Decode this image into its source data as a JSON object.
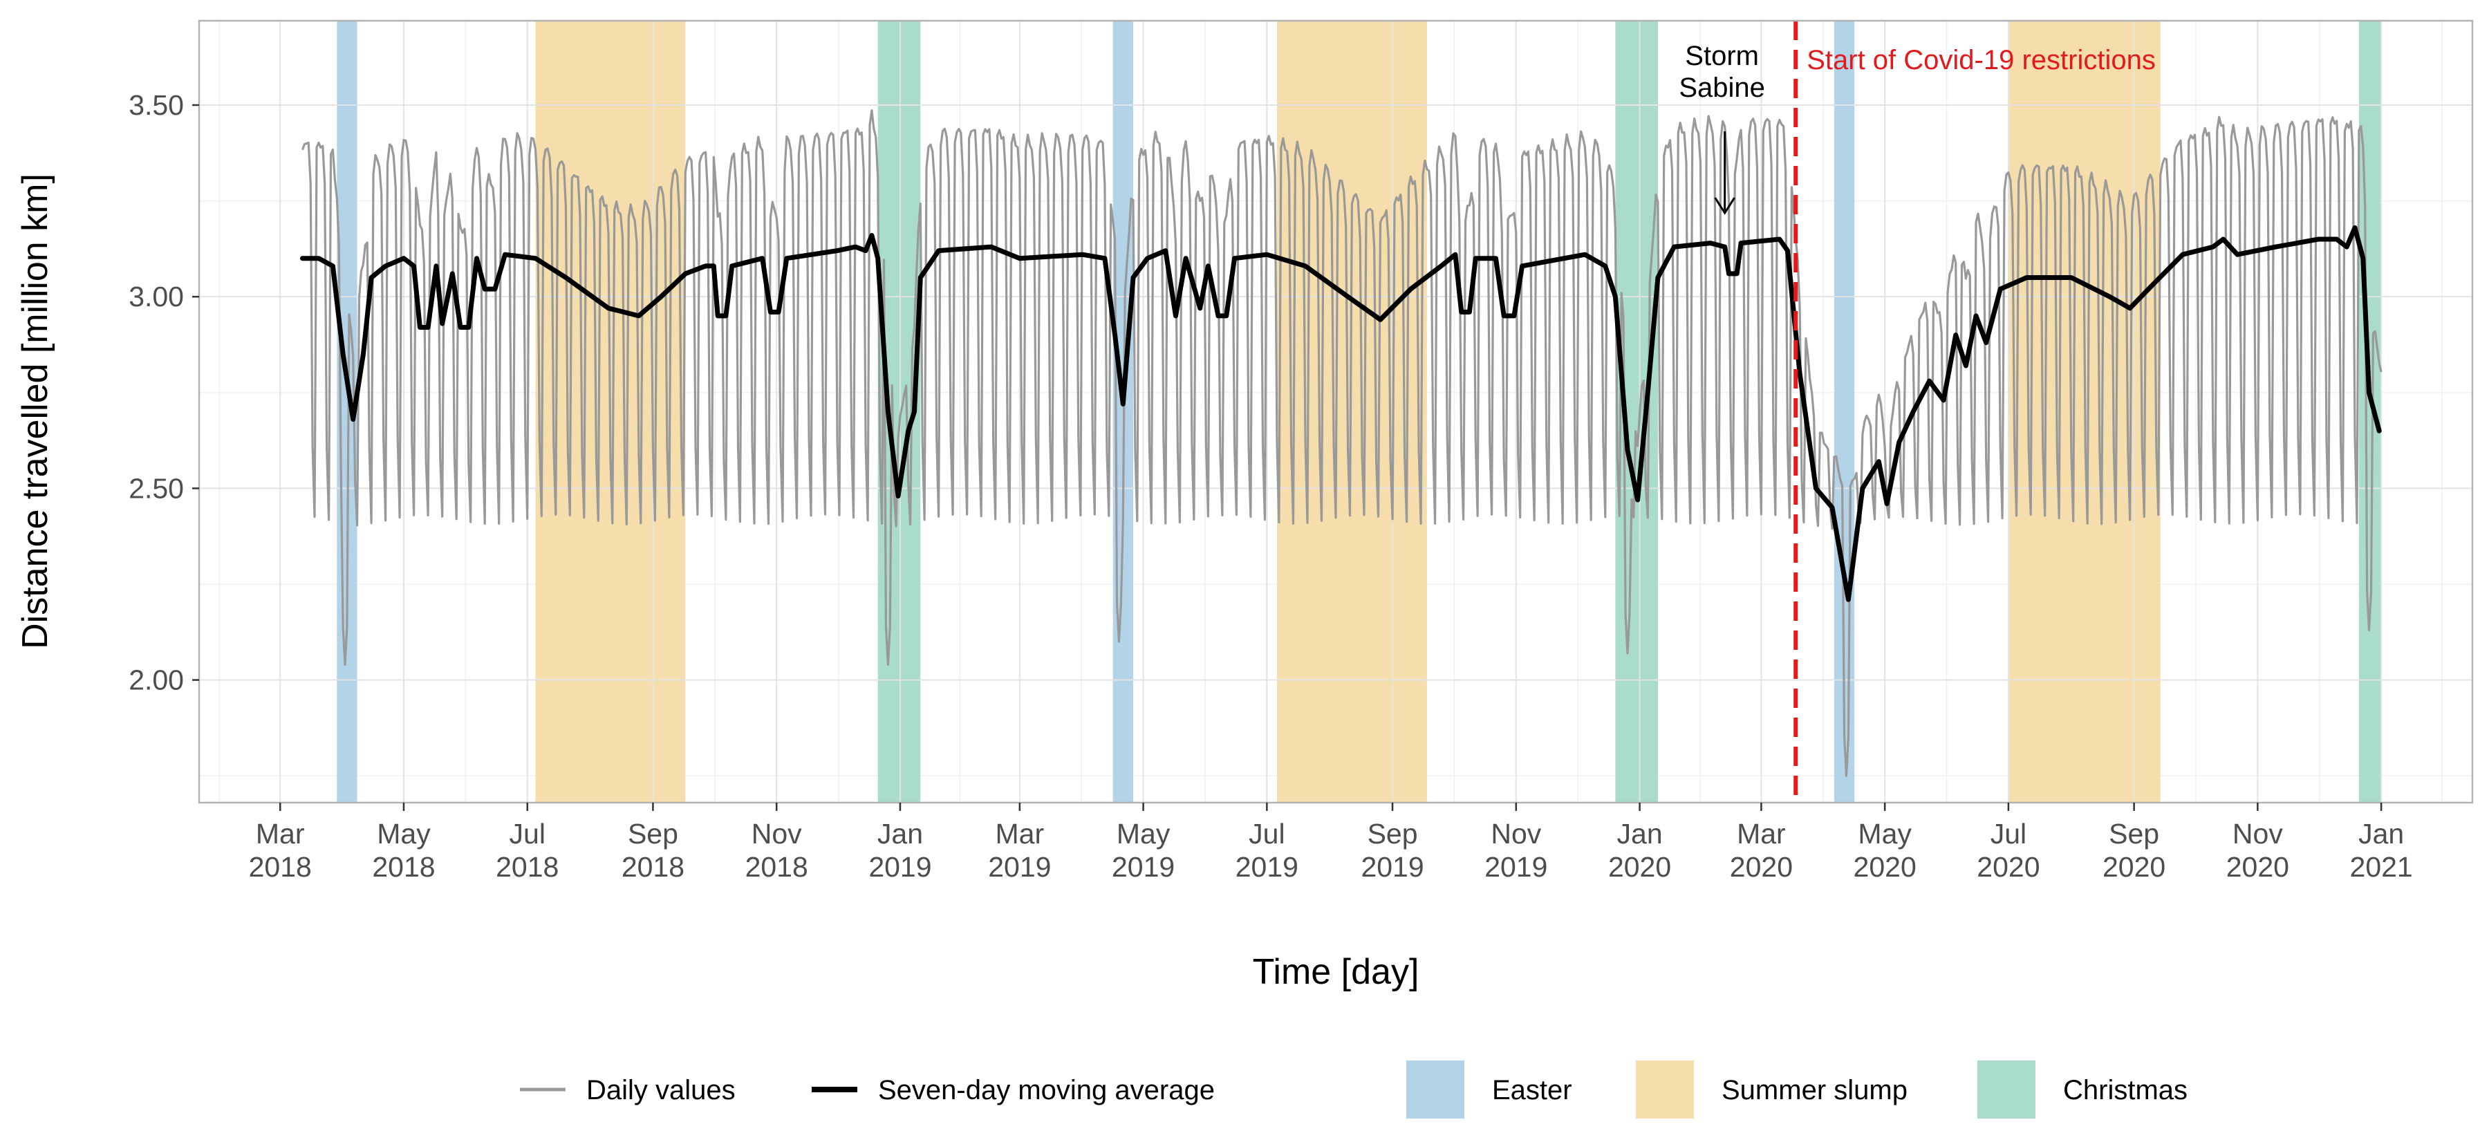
{
  "chart_data": {
    "type": "line",
    "xlabel": "Time [day]",
    "ylabel": "Distance travelled [million km]",
    "ylim": [
      1.68,
      3.72
    ],
    "x_range": [
      "2018-01-20",
      "2021-02-15"
    ],
    "y_ticks": [
      {
        "value": 2.0,
        "label": "2.00"
      },
      {
        "value": 2.5,
        "label": "2.50"
      },
      {
        "value": 3.0,
        "label": "3.00"
      },
      {
        "value": 3.5,
        "label": "3.50"
      }
    ],
    "x_ticks": [
      {
        "date": "2018-03-01",
        "month": "Mar",
        "year": "2018"
      },
      {
        "date": "2018-05-01",
        "month": "May",
        "year": "2018"
      },
      {
        "date": "2018-07-01",
        "month": "Jul",
        "year": "2018"
      },
      {
        "date": "2018-09-01",
        "month": "Sep",
        "year": "2018"
      },
      {
        "date": "2018-11-01",
        "month": "Nov",
        "year": "2018"
      },
      {
        "date": "2019-01-01",
        "month": "Jan",
        "year": "2019"
      },
      {
        "date": "2019-03-01",
        "month": "Mar",
        "year": "2019"
      },
      {
        "date": "2019-05-01",
        "month": "May",
        "year": "2019"
      },
      {
        "date": "2019-07-01",
        "month": "Jul",
        "year": "2019"
      },
      {
        "date": "2019-09-01",
        "month": "Sep",
        "year": "2019"
      },
      {
        "date": "2019-11-01",
        "month": "Nov",
        "year": "2019"
      },
      {
        "date": "2020-01-01",
        "month": "Jan",
        "year": "2020"
      },
      {
        "date": "2020-03-01",
        "month": "Mar",
        "year": "2020"
      },
      {
        "date": "2020-05-01",
        "month": "May",
        "year": "2020"
      },
      {
        "date": "2020-07-01",
        "month": "Jul",
        "year": "2020"
      },
      {
        "date": "2020-09-01",
        "month": "Sep",
        "year": "2020"
      },
      {
        "date": "2020-11-01",
        "month": "Nov",
        "year": "2020"
      },
      {
        "date": "2021-01-01",
        "month": "Jan",
        "year": "2021"
      }
    ],
    "periods": [
      {
        "category": "easter",
        "start": "2018-03-29",
        "end": "2018-04-08"
      },
      {
        "category": "summer",
        "start": "2018-07-05",
        "end": "2018-09-17"
      },
      {
        "category": "christmas",
        "start": "2018-12-21",
        "end": "2019-01-11"
      },
      {
        "category": "easter",
        "start": "2019-04-16",
        "end": "2019-04-26"
      },
      {
        "category": "summer",
        "start": "2019-07-06",
        "end": "2019-09-18"
      },
      {
        "category": "christmas",
        "start": "2019-12-20",
        "end": "2020-01-10"
      },
      {
        "category": "easter",
        "start": "2020-04-06",
        "end": "2020-04-16"
      },
      {
        "category": "summer",
        "start": "2020-07-01",
        "end": "2020-09-14"
      },
      {
        "category": "christmas",
        "start": "2020-12-21",
        "end": "2021-01-01"
      }
    ],
    "period_colors": {
      "easter": "#b3d4e8",
      "summer": "#f5deab",
      "christmas": "#a9dcc9"
    },
    "series": [
      {
        "name": "Daily values",
        "color": "#999999",
        "start_date": "2018-03-12",
        "end_date": "2021-01-01",
        "generated": "weekly pattern: weekday peaks ~3.40, weekend troughs ~2.42, dips at holidays",
        "holiday_dips": [
          {
            "date": "2018-04-02",
            "value": 2.04
          },
          {
            "date": "2018-12-26",
            "value": 2.04
          },
          {
            "date": "2019-04-19",
            "value": 2.1
          },
          {
            "date": "2019-12-26",
            "value": 2.07
          },
          {
            "date": "2020-04-12",
            "value": 1.75
          },
          {
            "date": "2020-12-26",
            "value": 2.13
          }
        ]
      },
      {
        "name": "Seven-day moving average",
        "color": "#000000",
        "points": [
          [
            "2018-03-12",
            3.1
          ],
          [
            "2018-03-20",
            3.1
          ],
          [
            "2018-03-27",
            3.08
          ],
          [
            "2018-04-01",
            2.85
          ],
          [
            "2018-04-06",
            2.68
          ],
          [
            "2018-04-11",
            2.85
          ],
          [
            "2018-04-15",
            3.05
          ],
          [
            "2018-04-22",
            3.08
          ],
          [
            "2018-05-01",
            3.1
          ],
          [
            "2018-05-06",
            3.08
          ],
          [
            "2018-05-09",
            2.92
          ],
          [
            "2018-05-13",
            2.92
          ],
          [
            "2018-05-17",
            3.08
          ],
          [
            "2018-05-20",
            2.93
          ],
          [
            "2018-05-25",
            3.06
          ],
          [
            "2018-05-29",
            2.92
          ],
          [
            "2018-06-02",
            2.92
          ],
          [
            "2018-06-06",
            3.1
          ],
          [
            "2018-06-10",
            3.02
          ],
          [
            "2018-06-15",
            3.02
          ],
          [
            "2018-06-20",
            3.11
          ],
          [
            "2018-07-05",
            3.1
          ],
          [
            "2018-07-20",
            3.05
          ],
          [
            "2018-08-10",
            2.97
          ],
          [
            "2018-08-25",
            2.95
          ],
          [
            "2018-09-05",
            3.0
          ],
          [
            "2018-09-17",
            3.06
          ],
          [
            "2018-09-27",
            3.08
          ],
          [
            "2018-10-01",
            3.08
          ],
          [
            "2018-10-03",
            2.95
          ],
          [
            "2018-10-07",
            2.95
          ],
          [
            "2018-10-10",
            3.08
          ],
          [
            "2018-10-25",
            3.1
          ],
          [
            "2018-10-29",
            2.96
          ],
          [
            "2018-11-02",
            2.96
          ],
          [
            "2018-11-06",
            3.1
          ],
          [
            "2018-12-01",
            3.12
          ],
          [
            "2018-12-10",
            3.13
          ],
          [
            "2018-12-15",
            3.12
          ],
          [
            "2018-12-18",
            3.16
          ],
          [
            "2018-12-21",
            3.1
          ],
          [
            "2018-12-26",
            2.7
          ],
          [
            "2018-12-31",
            2.48
          ],
          [
            "2019-01-05",
            2.65
          ],
          [
            "2019-01-08",
            2.7
          ],
          [
            "2019-01-11",
            3.05
          ],
          [
            "2019-01-20",
            3.12
          ],
          [
            "2019-02-15",
            3.13
          ],
          [
            "2019-03-01",
            3.1
          ],
          [
            "2019-04-01",
            3.11
          ],
          [
            "2019-04-12",
            3.1
          ],
          [
            "2019-04-17",
            2.9
          ],
          [
            "2019-04-21",
            2.72
          ],
          [
            "2019-04-26",
            3.05
          ],
          [
            "2019-05-03",
            3.1
          ],
          [
            "2019-05-12",
            3.12
          ],
          [
            "2019-05-17",
            2.95
          ],
          [
            "2019-05-22",
            3.1
          ],
          [
            "2019-05-29",
            2.97
          ],
          [
            "2019-06-02",
            3.08
          ],
          [
            "2019-06-07",
            2.95
          ],
          [
            "2019-06-11",
            2.95
          ],
          [
            "2019-06-15",
            3.1
          ],
          [
            "2019-07-01",
            3.11
          ],
          [
            "2019-07-20",
            3.08
          ],
          [
            "2019-08-10",
            3.0
          ],
          [
            "2019-08-26",
            2.94
          ],
          [
            "2019-09-10",
            3.02
          ],
          [
            "2019-09-25",
            3.08
          ],
          [
            "2019-10-02",
            3.11
          ],
          [
            "2019-10-05",
            2.96
          ],
          [
            "2019-10-09",
            2.96
          ],
          [
            "2019-10-12",
            3.1
          ],
          [
            "2019-10-22",
            3.1
          ],
          [
            "2019-10-26",
            2.95
          ],
          [
            "2019-10-31",
            2.95
          ],
          [
            "2019-11-04",
            3.08
          ],
          [
            "2019-12-05",
            3.11
          ],
          [
            "2019-12-15",
            3.08
          ],
          [
            "2019-12-20",
            3.0
          ],
          [
            "2019-12-26",
            2.6
          ],
          [
            "2019-12-31",
            2.47
          ],
          [
            "2020-01-05",
            2.75
          ],
          [
            "2020-01-10",
            3.05
          ],
          [
            "2020-01-18",
            3.13
          ],
          [
            "2020-02-05",
            3.14
          ],
          [
            "2020-02-12",
            3.13
          ],
          [
            "2020-02-14",
            3.06
          ],
          [
            "2020-02-18",
            3.06
          ],
          [
            "2020-02-20",
            3.14
          ],
          [
            "2020-03-10",
            3.15
          ],
          [
            "2020-03-14",
            3.12
          ],
          [
            "2020-03-20",
            2.8
          ],
          [
            "2020-03-28",
            2.5
          ],
          [
            "2020-04-05",
            2.45
          ],
          [
            "2020-04-13",
            2.21
          ],
          [
            "2020-04-20",
            2.5
          ],
          [
            "2020-04-28",
            2.57
          ],
          [
            "2020-05-02",
            2.46
          ],
          [
            "2020-05-08",
            2.62
          ],
          [
            "2020-05-15",
            2.7
          ],
          [
            "2020-05-23",
            2.78
          ],
          [
            "2020-05-30",
            2.73
          ],
          [
            "2020-06-05",
            2.9
          ],
          [
            "2020-06-10",
            2.82
          ],
          [
            "2020-06-15",
            2.95
          ],
          [
            "2020-06-20",
            2.88
          ],
          [
            "2020-06-27",
            3.02
          ],
          [
            "2020-07-10",
            3.05
          ],
          [
            "2020-08-01",
            3.05
          ],
          [
            "2020-08-20",
            3.0
          ],
          [
            "2020-08-30",
            2.97
          ],
          [
            "2020-09-10",
            3.03
          ],
          [
            "2020-09-25",
            3.11
          ],
          [
            "2020-10-10",
            3.13
          ],
          [
            "2020-10-15",
            3.15
          ],
          [
            "2020-10-22",
            3.11
          ],
          [
            "2020-11-10",
            3.13
          ],
          [
            "2020-12-01",
            3.15
          ],
          [
            "2020-12-10",
            3.15
          ],
          [
            "2020-12-15",
            3.13
          ],
          [
            "2020-12-19",
            3.18
          ],
          [
            "2020-12-23",
            3.1
          ],
          [
            "2020-12-26",
            2.75
          ],
          [
            "2020-12-31",
            2.65
          ]
        ]
      }
    ],
    "vline": {
      "date": "2020-03-18",
      "label": "Start of Covid-19 restrictions",
      "color": "#e31a1c"
    },
    "annotations": [
      {
        "text_lines": [
          "Storm",
          "Sabine"
        ],
        "date": "2020-02-12",
        "value": 3.15
      }
    ],
    "legend": {
      "position": "bottom",
      "lines": [
        {
          "label": "Daily values",
          "color": "#999999"
        },
        {
          "label": "Seven-day moving average",
          "color": "#000000"
        }
      ],
      "fills": [
        {
          "label": "Easter",
          "color": "#b3d4e8"
        },
        {
          "label": "Summer slump",
          "color": "#f5deab"
        },
        {
          "label": "Christmas",
          "color": "#a9dcc9"
        }
      ]
    }
  }
}
